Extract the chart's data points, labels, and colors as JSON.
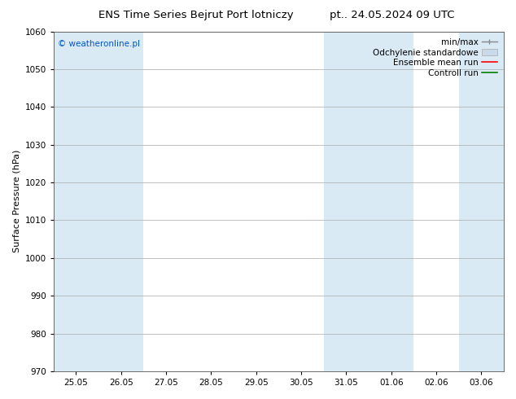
{
  "title_left": "ENS Time Series Bejrut Port lotniczy",
  "title_right": "pt.. 24.05.2024 09 UTC",
  "ylabel": "Surface Pressure (hPa)",
  "watermark": "© weatheronline.pl",
  "watermark_color": "#0055cc",
  "ylim": [
    970,
    1060
  ],
  "yticks": [
    970,
    980,
    990,
    1000,
    1010,
    1020,
    1030,
    1040,
    1050,
    1060
  ],
  "xtick_labels": [
    "25.05",
    "26.05",
    "27.05",
    "28.05",
    "29.05",
    "30.05",
    "31.05",
    "01.06",
    "02.06",
    "03.06"
  ],
  "xtick_positions": [
    0,
    1,
    2,
    3,
    4,
    5,
    6,
    7,
    8,
    9
  ],
  "background_color": "#ffffff",
  "shaded_columns": [
    0,
    1,
    6,
    7,
    9
  ],
  "shade_color": "#daeaf5",
  "grid_color": "#aaaaaa",
  "legend_items": [
    {
      "label": "min/max",
      "color": "#aaaaaa",
      "type": "errorbar"
    },
    {
      "label": "Odchylenie standardowe",
      "color": "#c8daea",
      "type": "bar"
    },
    {
      "label": "Ensemble mean run",
      "color": "#ff0000",
      "type": "line"
    },
    {
      "label": "Controll run",
      "color": "#008000",
      "type": "line"
    }
  ],
  "title_fontsize": 9.5,
  "axis_label_fontsize": 8,
  "tick_fontsize": 7.5,
  "legend_fontsize": 7.5,
  "watermark_fontsize": 7.5
}
